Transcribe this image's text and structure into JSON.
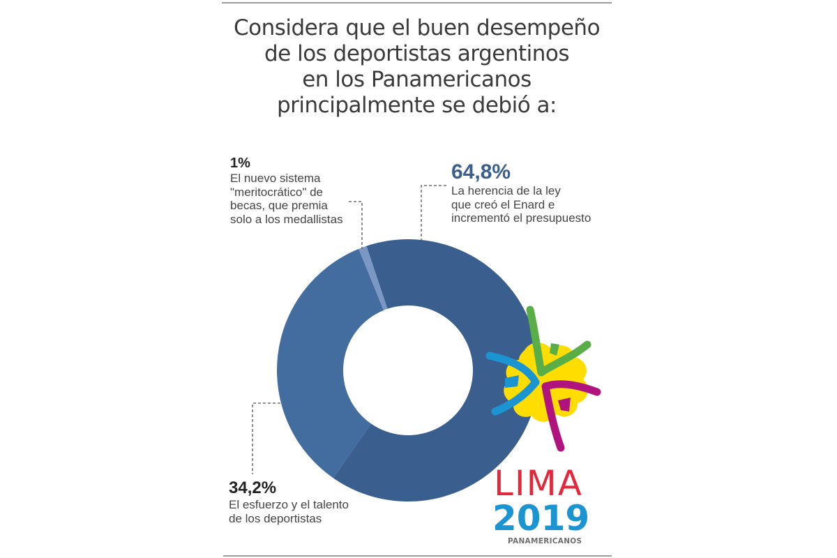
{
  "title_lines": [
    "Considera que el buen desempeño",
    "de los deportistas argentinos",
    "en los Panamericanos",
    "principalmente se debió a:"
  ],
  "chart_data": {
    "type": "pie",
    "variant": "donut",
    "title": "Considera que el buen desempeño de los deportistas argentinos en los Panamericanos principalmente se debió a:",
    "slices": [
      {
        "key": "herencia",
        "value": 64.8,
        "label": "64,8%",
        "description_lines": [
          "La herencia de la ley",
          "que creó el Enard e",
          "incrementó el presupuesto"
        ],
        "color": "#3a5f8f"
      },
      {
        "key": "esfuerzo",
        "value": 34.2,
        "label": "34,2%",
        "description_lines": [
          "El esfuerzo y el talento",
          "de los deportistas"
        ],
        "color": "#436c9f"
      },
      {
        "key": "becas",
        "value": 1,
        "label": "1%",
        "description_lines": [
          "El nuevo sistema",
          "\"meritocrático\" de",
          "becas, que premia",
          "solo a los medallistas"
        ],
        "color": "#7b97c4"
      }
    ],
    "legend": "none"
  },
  "logo": {
    "line1": "LIMA",
    "line2": "2019",
    "line3": "PANAMERICANOS",
    "colors": {
      "red": "#e2283a",
      "blue": "#1a95d2",
      "green": "#5aae47",
      "magenta": "#b0137d",
      "yellow": "#ffdd00"
    }
  },
  "colors": {
    "rule": "#9a9a9a",
    "leader": "#555555"
  }
}
